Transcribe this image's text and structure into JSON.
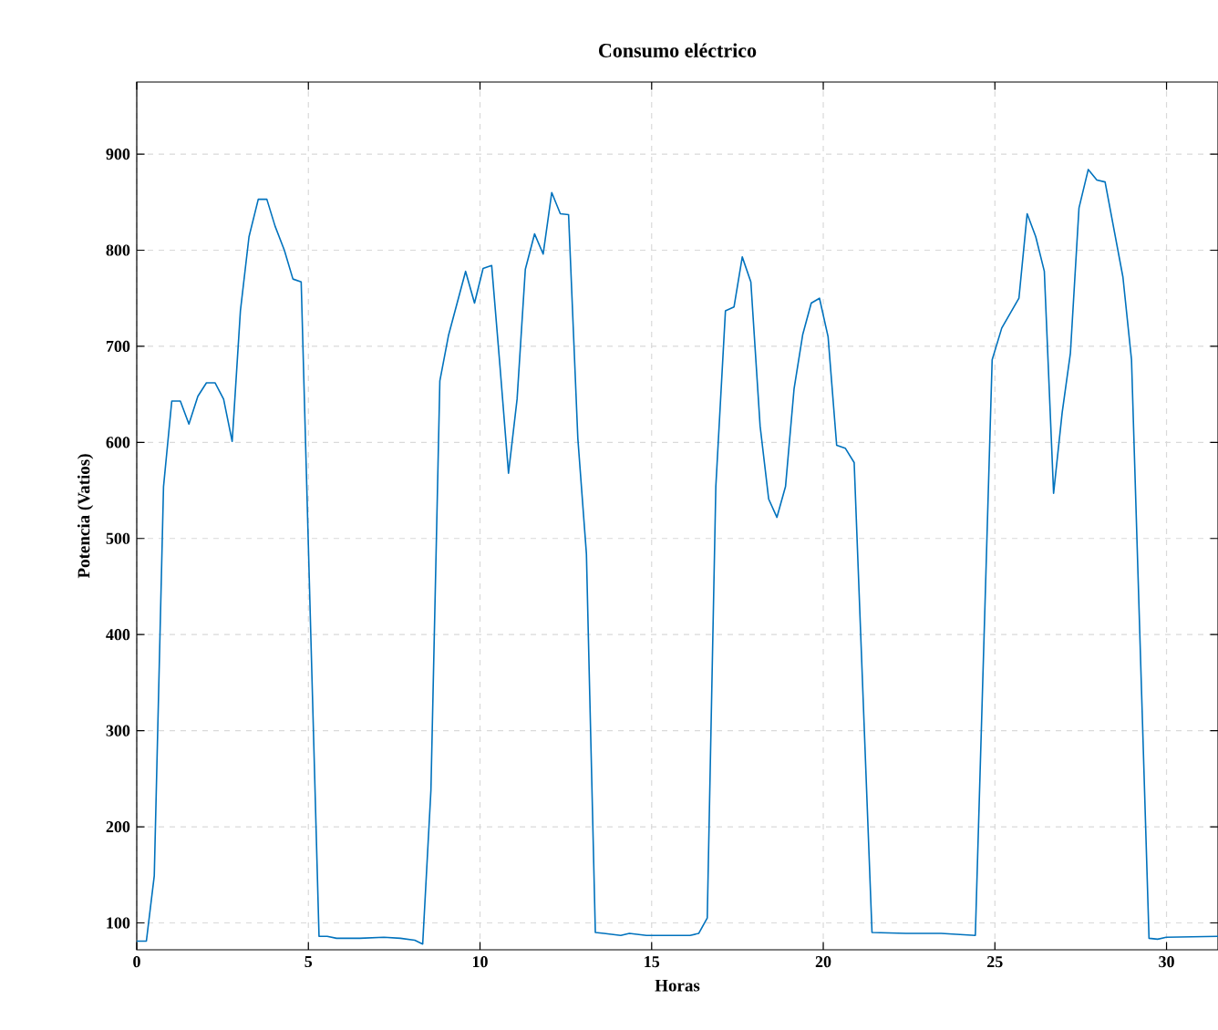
{
  "chart_data": {
    "type": "line",
    "title": "Consumo eléctrico",
    "xlabel": "Horas",
    "ylabel": "Potencia (Vatios)",
    "x": [
      0,
      0.28,
      0.51,
      0.78,
      1.02,
      1.27,
      1.52,
      1.78,
      2.03,
      2.28,
      2.53,
      2.78,
      3.02,
      3.27,
      3.54,
      3.79,
      4.03,
      4.3,
      4.55,
      4.79,
      5.31,
      5.55,
      5.82,
      6.5,
      7.2,
      7.68,
      8.1,
      8.33,
      8.57,
      8.83,
      9.08,
      9.58,
      9.84,
      10.09,
      10.34,
      10.58,
      10.83,
      11.08,
      11.32,
      11.59,
      11.84,
      12.09,
      12.34,
      12.58,
      12.85,
      13.1,
      13.36,
      13.61,
      14.1,
      14.35,
      14.85,
      15.35,
      16.12,
      16.37,
      16.62,
      16.87,
      17.15,
      17.4,
      17.64,
      17.89,
      18.16,
      18.41,
      18.65,
      18.9,
      19.15,
      19.4,
      19.65,
      19.89,
      20.14,
      20.39,
      20.64,
      20.9,
      21.42,
      22.41,
      23.43,
      24.43,
      24.92,
      25.2,
      25.7,
      25.94,
      26.19,
      26.44,
      26.71,
      26.96,
      27.2,
      27.45,
      27.72,
      27.97,
      28.21,
      28.73,
      28.98,
      29.49,
      29.74,
      29.99,
      31.5
    ],
    "series": [
      {
        "color": "#0072bd",
        "values": [
          81,
          81,
          149,
          554,
          643,
          643,
          619,
          648,
          662,
          662,
          645,
          601,
          737,
          814,
          853,
          853,
          825,
          800,
          770,
          767,
          86,
          86,
          84,
          84,
          85,
          84,
          82,
          78,
          238,
          664,
          711,
          778,
          745,
          781,
          784,
          680,
          568,
          645,
          780,
          817,
          796,
          860,
          838,
          837,
          604,
          484,
          90,
          89,
          87,
          89,
          87,
          87,
          87,
          89,
          105,
          554,
          737,
          741,
          793,
          767,
          617,
          541,
          522,
          554,
          656,
          712,
          745,
          750,
          710,
          597,
          594,
          579,
          90,
          89,
          89,
          87,
          686,
          719,
          750,
          838,
          814,
          778,
          547,
          631,
          693,
          844,
          884,
          873,
          871,
          772,
          686,
          84,
          83,
          85,
          86
        ]
      }
    ],
    "xlim": [
      0,
      31.5
    ],
    "ylim": [
      72,
      975
    ],
    "xticks": [
      0,
      5,
      10,
      15,
      20,
      25,
      30
    ],
    "yticks": [
      100,
      200,
      300,
      400,
      500,
      600,
      700,
      800,
      900
    ],
    "grid": true,
    "line_style": "solid"
  }
}
